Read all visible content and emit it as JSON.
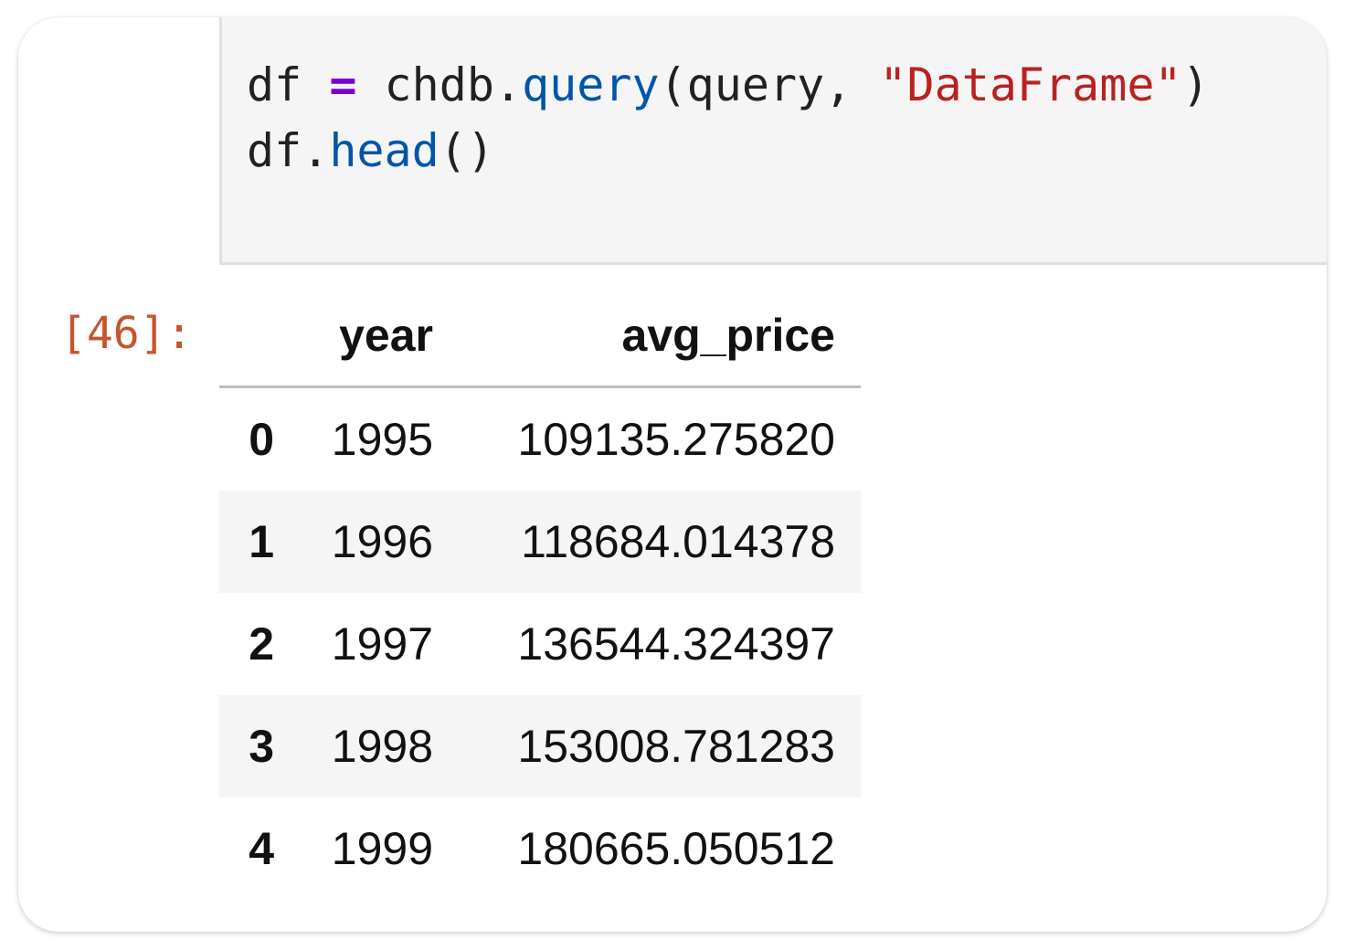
{
  "cell": {
    "prompt": "[46]:",
    "code": {
      "line1": {
        "var": "df",
        "op": "=",
        "obj": "chdb.",
        "fn": "query",
        "args_open": "(query, ",
        "str": "\"DataFrame\"",
        "close": ")"
      },
      "line2": {
        "obj": "df.",
        "fn": "head",
        "call": "()"
      }
    }
  },
  "colors": {
    "operator": "#7c00d4",
    "function": "#0055aa",
    "string": "#ba2121",
    "prompt": "#c5552f"
  },
  "table": {
    "columns": [
      "",
      "year",
      "avg_price"
    ],
    "rows": [
      {
        "index": "0",
        "year": "1995",
        "avg_price": "109135.275820"
      },
      {
        "index": "1",
        "year": "1996",
        "avg_price": "118684.014378"
      },
      {
        "index": "2",
        "year": "1997",
        "avg_price": "136544.324397"
      },
      {
        "index": "3",
        "year": "1998",
        "avg_price": "153008.781283"
      },
      {
        "index": "4",
        "year": "1999",
        "avg_price": "180665.050512"
      }
    ]
  }
}
